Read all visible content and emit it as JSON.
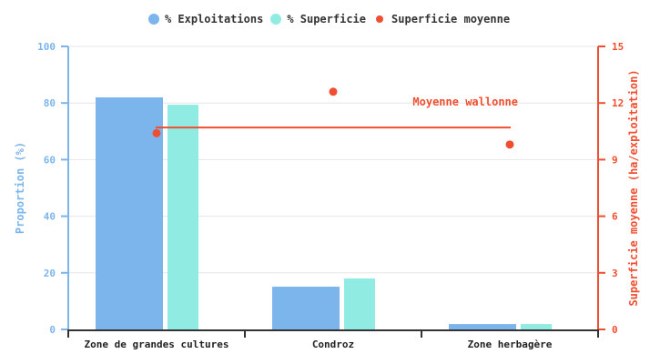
{
  "chart_data": {
    "type": "bar",
    "title": "",
    "categories": [
      "Zone de grandes cultures",
      "Condroz",
      "Zone herbagère"
    ],
    "series": [
      {
        "name": "% Exploitations",
        "type": "bar",
        "axis": "left",
        "color": "#7cb5ec",
        "values": [
          82.0,
          15.1,
          1.9
        ]
      },
      {
        "name": "% Superficie",
        "type": "bar",
        "axis": "left",
        "color": "#90ebe3",
        "values": [
          79.4,
          18.0,
          1.9
        ]
      },
      {
        "name": "Superficie moyenne",
        "type": "scatter",
        "axis": "right",
        "color": "#f04e30",
        "values": [
          10.4,
          12.6,
          9.8
        ]
      }
    ],
    "reference_line": {
      "label": "Moyenne wallonne",
      "value": 10.7,
      "axis": "right",
      "color": "#f04e30"
    },
    "xlabel": "",
    "ylabel_left": "Proportion (%)",
    "ylabel_right": "Superficie moyenne (ha/exploitation)",
    "ylim_left": [
      0,
      100
    ],
    "yticks_left": [
      0,
      20,
      40,
      60,
      80,
      100
    ],
    "ylim_right": [
      0,
      15
    ],
    "yticks_right": [
      0,
      3,
      6,
      9,
      12,
      15
    ],
    "grid": true,
    "legend_position": "top"
  },
  "legend": {
    "items": [
      {
        "label": "% Exploitations",
        "color": "#7cb5ec"
      },
      {
        "label": "% Superficie",
        "color": "#90ebe3"
      },
      {
        "label": "Superficie moyenne",
        "color": "#f04e30"
      }
    ]
  },
  "colors": {
    "left_axis": "#7cb5ec",
    "right_axis": "#f04e30",
    "grid": "#e6e6e6",
    "x_axis": "#333333"
  }
}
